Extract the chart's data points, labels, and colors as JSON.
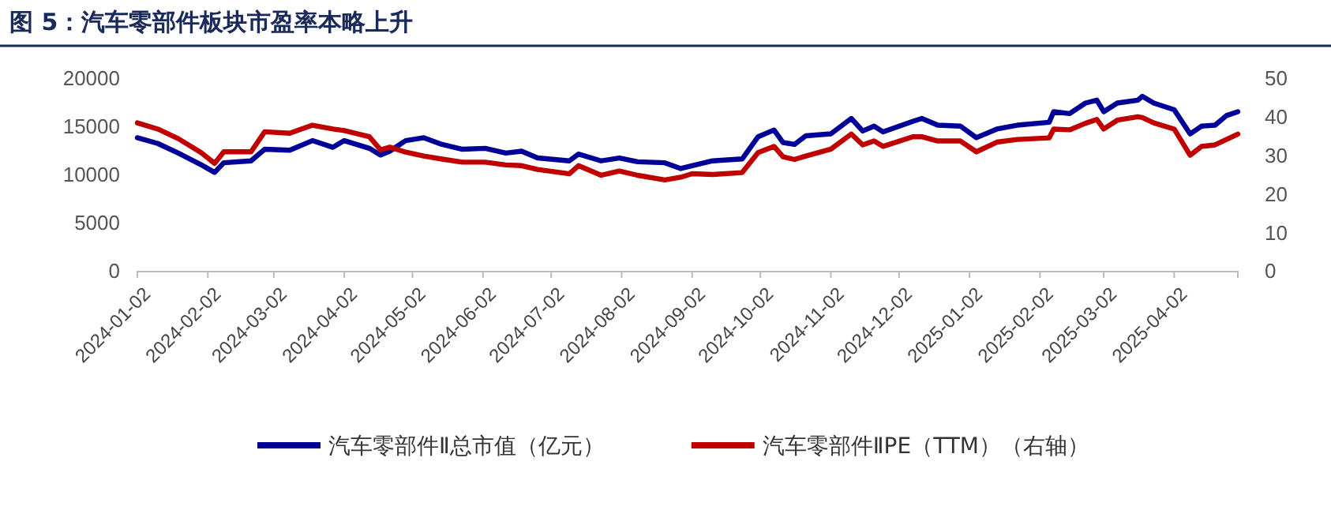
{
  "chart_data": {
    "type": "line",
    "title": "图 5：汽车零部件板块市盈率本略上升",
    "x": [
      "2024-01-02",
      "2024-01-11",
      "2024-01-20",
      "2024-01-30",
      "2024-02-05",
      "2024-02-09",
      "2024-02-21",
      "2024-02-27",
      "2024-03-09",
      "2024-03-19",
      "2024-03-28",
      "2024-04-02",
      "2024-04-13",
      "2024-04-18",
      "2024-04-22",
      "2024-04-29",
      "2024-05-07",
      "2024-05-15",
      "2024-05-24",
      "2024-06-03",
      "2024-06-12",
      "2024-06-19",
      "2024-06-26",
      "2024-07-10",
      "2024-07-14",
      "2024-07-24",
      "2024-08-01",
      "2024-08-09",
      "2024-08-21",
      "2024-08-28",
      "2024-09-02",
      "2024-09-11",
      "2024-09-24",
      "2024-10-01",
      "2024-10-08",
      "2024-10-12",
      "2024-10-17",
      "2024-10-22",
      "2024-11-02",
      "2024-11-11",
      "2024-11-16",
      "2024-11-21",
      "2024-11-25",
      "2024-12-08",
      "2024-12-12",
      "2024-12-19",
      "2024-12-29",
      "2025-01-05",
      "2025-01-14",
      "2025-01-23",
      "2025-02-06",
      "2025-02-08",
      "2025-02-15",
      "2025-02-22",
      "2025-02-27",
      "2025-03-02",
      "2025-03-08",
      "2025-03-17",
      "2025-03-19",
      "2025-03-24",
      "2025-04-02",
      "2025-04-09",
      "2025-04-14",
      "2025-04-20",
      "2025-04-25",
      "2025-04-30"
    ],
    "series": [
      {
        "name": "汽车零部件Ⅱ总市值（亿元）",
        "color": "#000099",
        "values": [
          13900,
          13300,
          12300,
          11100,
          10300,
          11300,
          11500,
          12700,
          12600,
          13600,
          12900,
          13600,
          12800,
          12100,
          12500,
          13600,
          13900,
          13200,
          12700,
          12800,
          12300,
          12500,
          11800,
          11500,
          12200,
          11500,
          11800,
          11400,
          11300,
          10700,
          11000,
          11500,
          11700,
          14000,
          14700,
          13400,
          13200,
          14100,
          14300,
          15900,
          14600,
          15100,
          14500,
          15600,
          15900,
          15200,
          15100,
          13900,
          14800,
          15200,
          15500,
          16600,
          16400,
          17500,
          17800,
          16600,
          17500,
          17800,
          18200,
          17500,
          16800,
          14300,
          15100,
          15200,
          16200,
          16600
        ]
      },
      {
        "name": "汽车零部件ⅡPE（TTM）（右轴）",
        "color": "#c00000",
        "axis": "y2",
        "values": [
          38.6,
          37.0,
          34.5,
          30.9,
          28.1,
          31.1,
          31.1,
          36.3,
          35.9,
          38.0,
          37.0,
          36.6,
          35.0,
          31.6,
          32.3,
          31.0,
          30.0,
          29.2,
          28.4,
          28.4,
          27.7,
          27.5,
          26.5,
          25.4,
          27.5,
          25.0,
          26.1,
          25.0,
          23.8,
          24.5,
          25.4,
          25.2,
          25.7,
          30.9,
          32.5,
          29.8,
          29.1,
          30.0,
          31.8,
          35.7,
          32.9,
          33.9,
          32.5,
          35.0,
          35.0,
          33.9,
          33.9,
          31.1,
          33.6,
          34.3,
          34.7,
          37.0,
          36.8,
          38.5,
          39.5,
          37.0,
          39.3,
          40.2,
          40.0,
          38.6,
          37.0,
          30.2,
          32.5,
          32.9,
          34.3,
          35.7
        ]
      }
    ],
    "xlim": [
      "2024-01-02",
      "2025-04-30"
    ],
    "xticks": [
      "2024-01-02",
      "2024-02-02",
      "2024-03-02",
      "2024-04-02",
      "2024-05-02",
      "2024-06-02",
      "2024-07-02",
      "2024-08-02",
      "2024-09-02",
      "2024-10-02",
      "2024-11-02",
      "2024-12-02",
      "2025-01-02",
      "2025-02-02",
      "2025-03-02",
      "2025-04-02"
    ],
    "ylim": [
      0,
      20000
    ],
    "yticks": [
      0,
      5000,
      10000,
      15000,
      20000
    ],
    "y2lim": [
      0,
      50
    ],
    "y2ticks": [
      0,
      10,
      20,
      30,
      40,
      50
    ],
    "legend": "bottom",
    "grid": false,
    "marker": "none",
    "line_style": "solid"
  }
}
